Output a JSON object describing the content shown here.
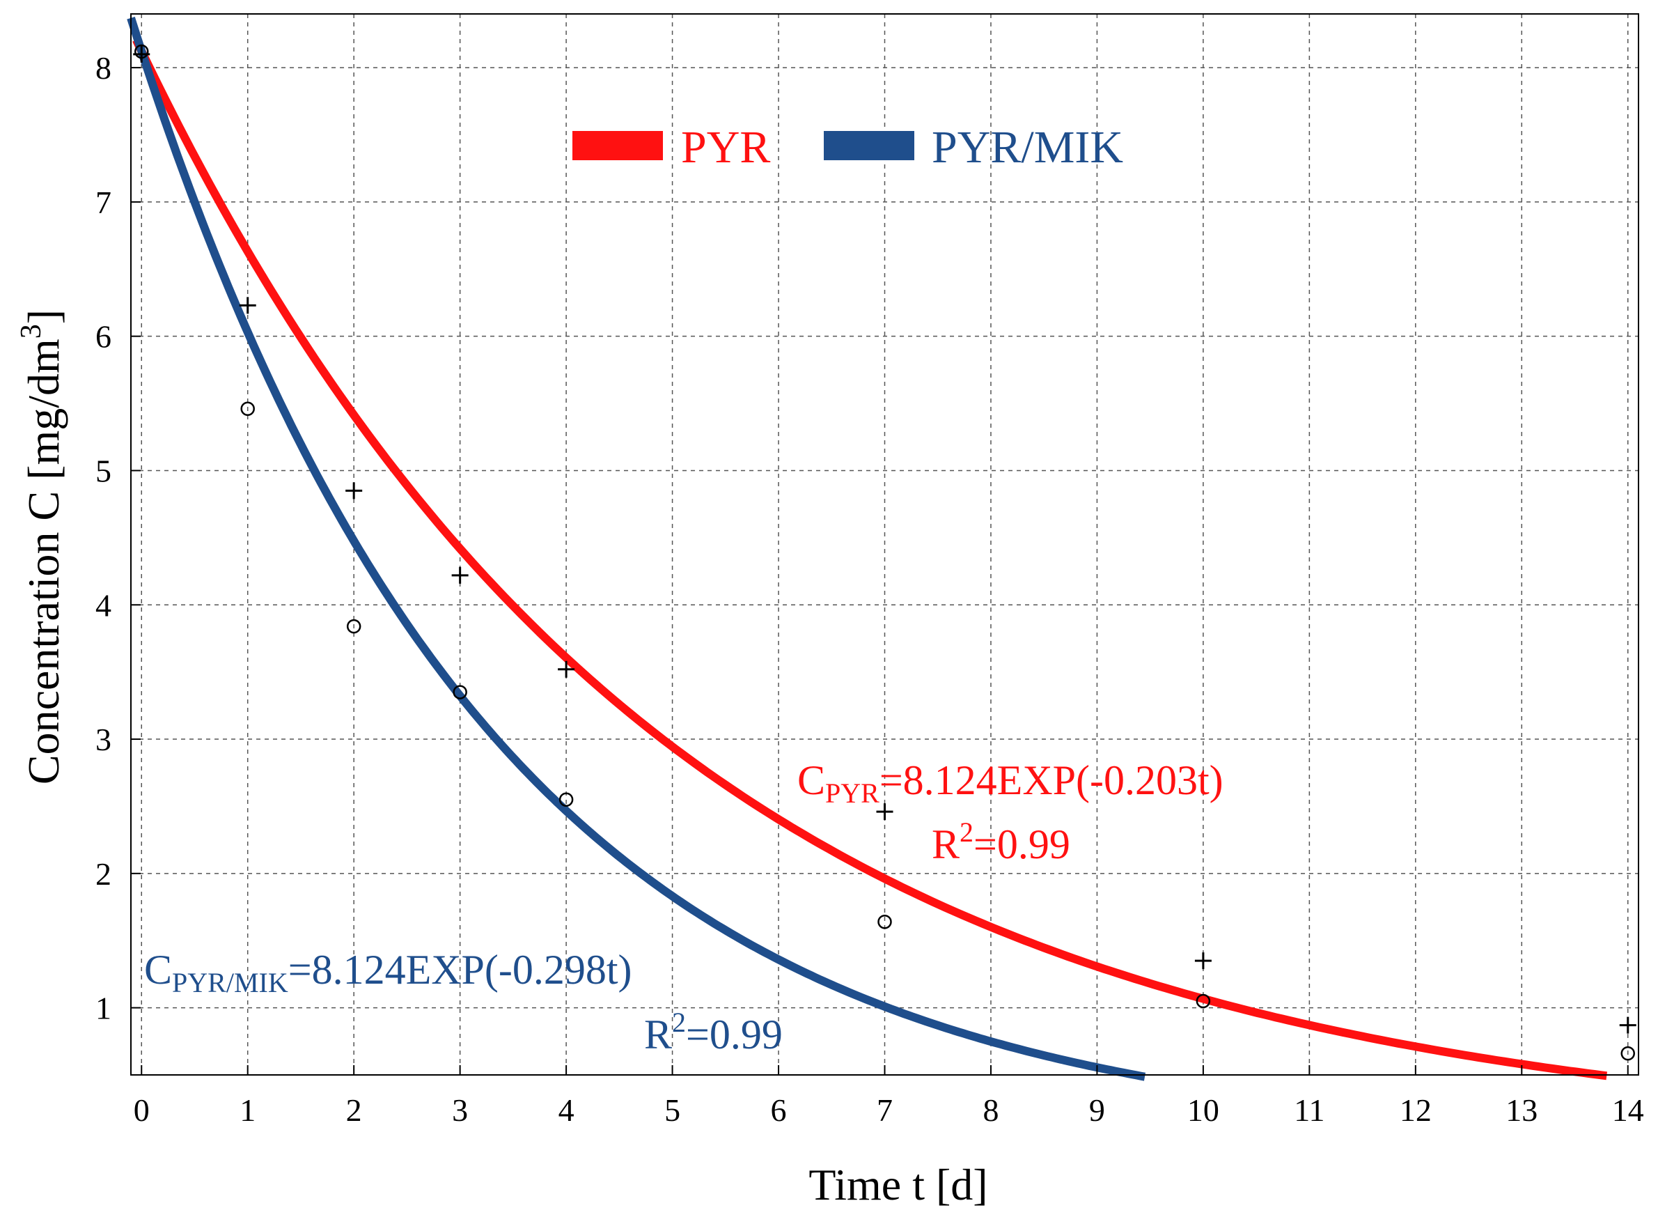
{
  "chart_data": {
    "type": "scatter",
    "title": "",
    "xlabel": "Time t [d]",
    "ylabel_main": "Concentration C [mg/dm",
    "ylabel_sup": "3",
    "ylabel_close": "]",
    "xlim": [
      -0.1,
      14.1
    ],
    "ylim": [
      0.5,
      8.4
    ],
    "x_ticks": [
      0,
      1,
      2,
      3,
      4,
      5,
      6,
      7,
      8,
      9,
      10,
      11,
      12,
      13,
      14
    ],
    "y_ticks": [
      1,
      2,
      3,
      4,
      5,
      6,
      7,
      8
    ],
    "grid": true,
    "legend_position": "top-center",
    "legend": [
      {
        "label": "PYR",
        "color": "#ff1111"
      },
      {
        "label": "PYR/MIK",
        "color": "#1f4e8c"
      }
    ],
    "series": [
      {
        "name": "PYR",
        "color": "#ff1111",
        "marker": "plus",
        "x": [
          0,
          1,
          2,
          3,
          4,
          7,
          10,
          14
        ],
        "y": [
          8.1,
          6.23,
          4.85,
          4.22,
          3.52,
          2.46,
          1.35,
          0.87
        ],
        "fit": {
          "a": 8.124,
          "k": 0.203,
          "x_range": [
            -0.05,
            13.8
          ]
        }
      },
      {
        "name": "PYR/MIK",
        "color": "#1f4e8c",
        "marker": "circle",
        "x": [
          0,
          1,
          2,
          3,
          4,
          7,
          10,
          14
        ],
        "y": [
          8.12,
          5.46,
          3.84,
          3.35,
          2.55,
          1.64,
          1.05,
          0.66
        ],
        "fit": {
          "a": 8.124,
          "k": 0.298,
          "x_range": [
            -0.1,
            9.45
          ]
        }
      }
    ],
    "annotations": [
      {
        "name": "pyr-equation",
        "series": "PYR",
        "color": "#ff1111",
        "c": "C",
        "sub": "PYR",
        "eq": "=8.124EXP(-0.203t)",
        "r": "R",
        "r_sup": "2",
        "r_val": "=0.99"
      },
      {
        "name": "pyr-mik-equation",
        "series": "PYR/MIK",
        "color": "#1f4e8c",
        "c": "C",
        "sub": "PYR/MIK",
        "eq": "=8.124EXP(-0.298t)",
        "r": "R",
        "r_sup": "2",
        "r_val": "=0.99"
      }
    ]
  }
}
